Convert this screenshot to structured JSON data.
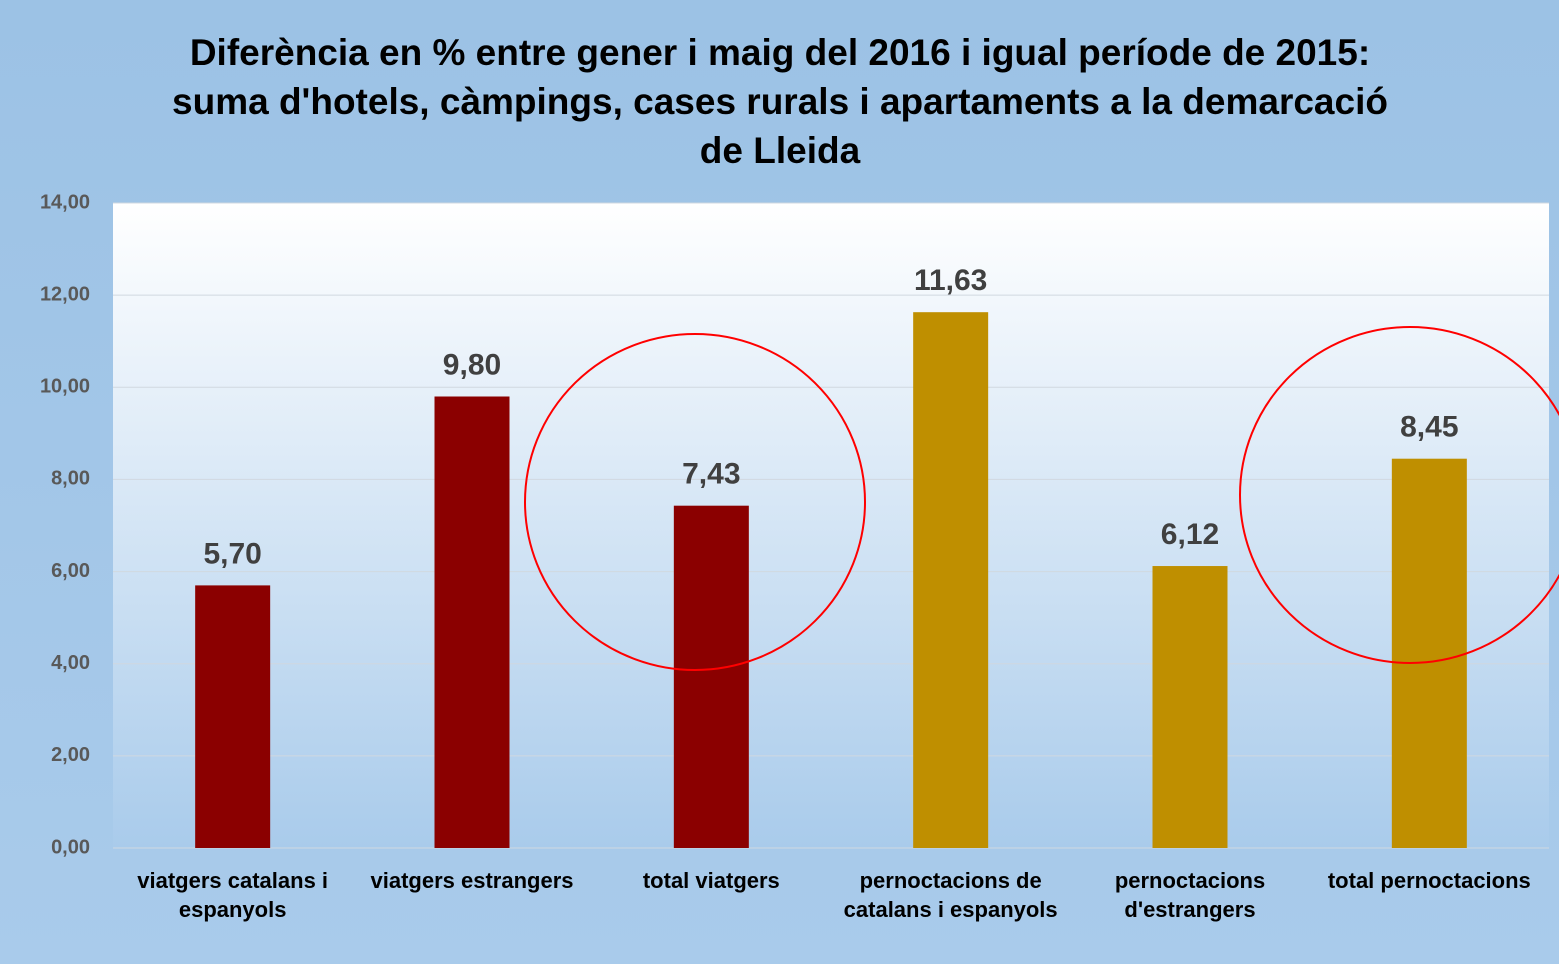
{
  "chart_data": {
    "type": "bar",
    "title": "Diferència en % entre gener i maig del 2016 i igual període de 2015: suma d'hotels, càmpings, cases rurals i apartaments a la demarcació de Lleida",
    "categories": [
      "viatgers catalans i espanyols",
      "viatgers estrangers",
      "total viatgers",
      "pernoctacions de catalans i espanyols",
      "pernoctacions d'estrangers",
      "total pernoctacions"
    ],
    "values": [
      5.7,
      9.8,
      7.43,
      11.63,
      6.12,
      8.45
    ],
    "value_labels": [
      "5,70",
      "9,80",
      "7,43",
      "11,63",
      "6,12",
      "8,45"
    ],
    "colors": [
      "#8b0000",
      "#8b0000",
      "#8b0000",
      "#bf8f00",
      "#bf8f00",
      "#bf8f00"
    ],
    "ylim": [
      0,
      14
    ],
    "yticks": [
      {
        "value": 0,
        "label": "0,00"
      },
      {
        "value": 2,
        "label": "2,00"
      },
      {
        "value": 4,
        "label": "4,00"
      },
      {
        "value": 6,
        "label": "6,00"
      },
      {
        "value": 8,
        "label": "8,00"
      },
      {
        "value": 10,
        "label": "10,00"
      },
      {
        "value": 12,
        "label": "12,00"
      },
      {
        "value": 14,
        "label": "14,00"
      }
    ],
    "grid": true
  }
}
